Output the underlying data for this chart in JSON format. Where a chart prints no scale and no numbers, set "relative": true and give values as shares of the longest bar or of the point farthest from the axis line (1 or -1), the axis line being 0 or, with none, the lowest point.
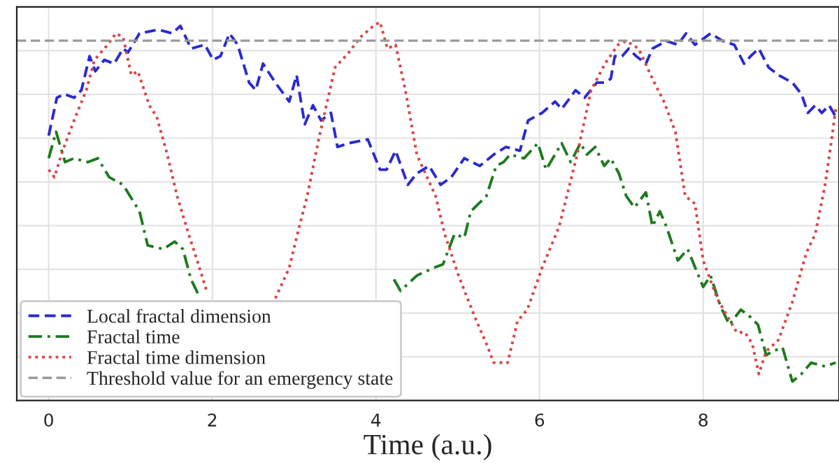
{
  "chart_data": {
    "type": "line",
    "relative": true,
    "xlabel": "Time (a.u.)",
    "xlim": [
      -0.39,
      9.66
    ],
    "xticks": [
      0,
      2,
      4,
      6,
      8
    ],
    "tick_labels": "x",
    "grid": true,
    "legend": "bottom left",
    "marker": "none",
    "series": [
      {
        "name": "Local fractal dimension",
        "color": "#2a2ad0",
        "line_style": "dashed",
        "x": [
          0,
          0.1,
          0.19,
          0.31,
          0.4,
          0.5,
          0.57,
          0.68,
          0.8,
          0.91,
          0.97,
          1.11,
          1.34,
          1.51,
          1.61,
          1.74,
          1.91,
          2.01,
          2.1,
          2.21,
          2.31,
          2.45,
          2.53,
          2.62,
          2.77,
          2.94,
          3.03,
          3.13,
          3.23,
          3.33,
          3.45,
          3.53,
          3.67,
          3.9,
          4.05,
          4.13,
          4.24,
          4.39,
          4.5,
          4.65,
          4.79,
          4.92,
          5.08,
          5.27,
          5.44,
          5.59,
          5.76,
          5.86,
          6.03,
          6.19,
          6.27,
          6.44,
          6.55,
          6.7,
          6.79,
          6.87,
          6.92,
          7.01,
          7.09,
          7.18,
          7.3,
          7.38,
          7.55,
          7.69,
          7.79,
          7.9,
          8.09,
          8.24,
          8.38,
          8.5,
          8.58,
          8.68,
          8.8,
          8.92,
          9.09,
          9.2,
          9.28,
          9.37,
          9.45,
          9.54,
          9.62
        ],
        "values": [
          0.7,
          0.8,
          0.81,
          0.8,
          0.82,
          0.91,
          0.87,
          0.9,
          0.89,
          0.93,
          0.92,
          0.97,
          0.98,
          0.97,
          0.99,
          0.93,
          0.94,
          0.9,
          0.91,
          0.97,
          0.94,
          0.84,
          0.82,
          0.89,
          0.84,
          0.79,
          0.86,
          0.73,
          0.78,
          0.74,
          0.76,
          0.67,
          0.68,
          0.69,
          0.61,
          0.61,
          0.66,
          0.57,
          0.6,
          0.62,
          0.57,
          0.59,
          0.64,
          0.62,
          0.65,
          0.67,
          0.66,
          0.74,
          0.76,
          0.79,
          0.77,
          0.82,
          0.8,
          0.84,
          0.84,
          0.85,
          0.91,
          0.91,
          0.93,
          0.91,
          0.89,
          0.93,
          0.95,
          0.94,
          0.97,
          0.94,
          0.97,
          0.95,
          0.94,
          0.89,
          0.91,
          0.93,
          0.88,
          0.86,
          0.84,
          0.81,
          0.76,
          0.78,
          0.76,
          0.78,
          0.75
        ]
      },
      {
        "name": "Fractal time",
        "color": "#1e7a1e",
        "line_style": "dashdot",
        "x": [
          0,
          0.09,
          0.2,
          0.31,
          0.48,
          0.6,
          0.74,
          0.91,
          1.11,
          1.21,
          1.4,
          1.54,
          1.64,
          1.74,
          1.83,
          3.0,
          4.22,
          4.3,
          4.5,
          4.7,
          4.82,
          4.96,
          5.08,
          5.16,
          5.35,
          5.47,
          5.56,
          5.64,
          5.81,
          5.98,
          6.08,
          6.27,
          6.38,
          6.5,
          6.58,
          6.68,
          6.79,
          6.87,
          6.97,
          7.06,
          7.16,
          7.3,
          7.38,
          7.47,
          7.55,
          7.69,
          7.81,
          8.0,
          8.09,
          8.21,
          8.32,
          8.46,
          8.58,
          8.67,
          8.77,
          8.85,
          8.97,
          9.09,
          9.2,
          9.32,
          9.49,
          9.62
        ],
        "values": [
          0.64,
          0.71,
          0.63,
          0.64,
          0.63,
          0.64,
          0.59,
          0.57,
          0.5,
          0.41,
          0.4,
          0.42,
          0.4,
          0.32,
          0.28,
          null,
          0.32,
          0.29,
          0.33,
          0.35,
          0.36,
          0.44,
          0.43,
          0.5,
          0.54,
          0.62,
          0.63,
          0.65,
          0.64,
          0.68,
          0.61,
          0.68,
          0.63,
          0.68,
          0.65,
          0.67,
          0.62,
          0.64,
          0.6,
          0.54,
          0.51,
          0.55,
          0.46,
          0.5,
          0.46,
          0.37,
          0.4,
          0.3,
          0.33,
          0.25,
          0.2,
          0.24,
          0.22,
          0.2,
          0.12,
          0.13,
          0.14,
          0.05,
          0.07,
          0.1,
          0.09,
          0.1
        ]
      },
      {
        "name": "Fractal time dimension",
        "color": "#d94545",
        "line_style": "dotted",
        "x": [
          0,
          0.07,
          0.17,
          0.31,
          0.46,
          0.56,
          0.72,
          0.82,
          0.91,
          1.01,
          1.09,
          1.23,
          1.32,
          1.45,
          1.57,
          1.71,
          1.83,
          1.93,
          2.3,
          2.77,
          2.94,
          3.04,
          3.16,
          3.3,
          3.5,
          3.67,
          3.81,
          3.97,
          4.05,
          4.14,
          4.24,
          4.36,
          4.5,
          4.73,
          4.84,
          5.01,
          5.21,
          5.35,
          5.44,
          5.61,
          5.73,
          5.85,
          6.03,
          6.24,
          6.46,
          6.63,
          6.8,
          6.96,
          7.06,
          7.21,
          7.38,
          7.52,
          7.66,
          7.78,
          7.9,
          8.0,
          8.17,
          8.41,
          8.51,
          8.6,
          8.68,
          8.77,
          8.92,
          9.09,
          9.26,
          9.37,
          9.49,
          9.57,
          9.62
        ],
        "values": [
          0.61,
          0.59,
          0.66,
          0.74,
          0.82,
          0.9,
          0.94,
          0.97,
          0.96,
          0.86,
          0.87,
          0.78,
          0.75,
          0.65,
          0.54,
          0.44,
          0.36,
          0.29,
          null,
          0.27,
          0.35,
          0.44,
          0.54,
          0.69,
          0.88,
          0.92,
          0.96,
          0.99,
          1.0,
          0.93,
          0.94,
          0.82,
          0.65,
          0.54,
          0.44,
          0.33,
          0.22,
          0.15,
          0.1,
          0.1,
          0.21,
          0.24,
          0.35,
          0.46,
          0.65,
          0.82,
          0.89,
          0.94,
          0.95,
          0.93,
          0.85,
          0.79,
          0.71,
          0.54,
          0.52,
          0.37,
          0.27,
          0.18,
          0.18,
          0.15,
          0.07,
          0.13,
          0.16,
          0.26,
          0.39,
          0.44,
          0.57,
          0.69,
          0.77
        ]
      }
    ],
    "ref_lines": [
      {
        "axis": "y",
        "value": 0.951,
        "label": "Threshold value for an emergency state",
        "color": "#9a9a9a",
        "line_style": "dashed"
      }
    ]
  }
}
